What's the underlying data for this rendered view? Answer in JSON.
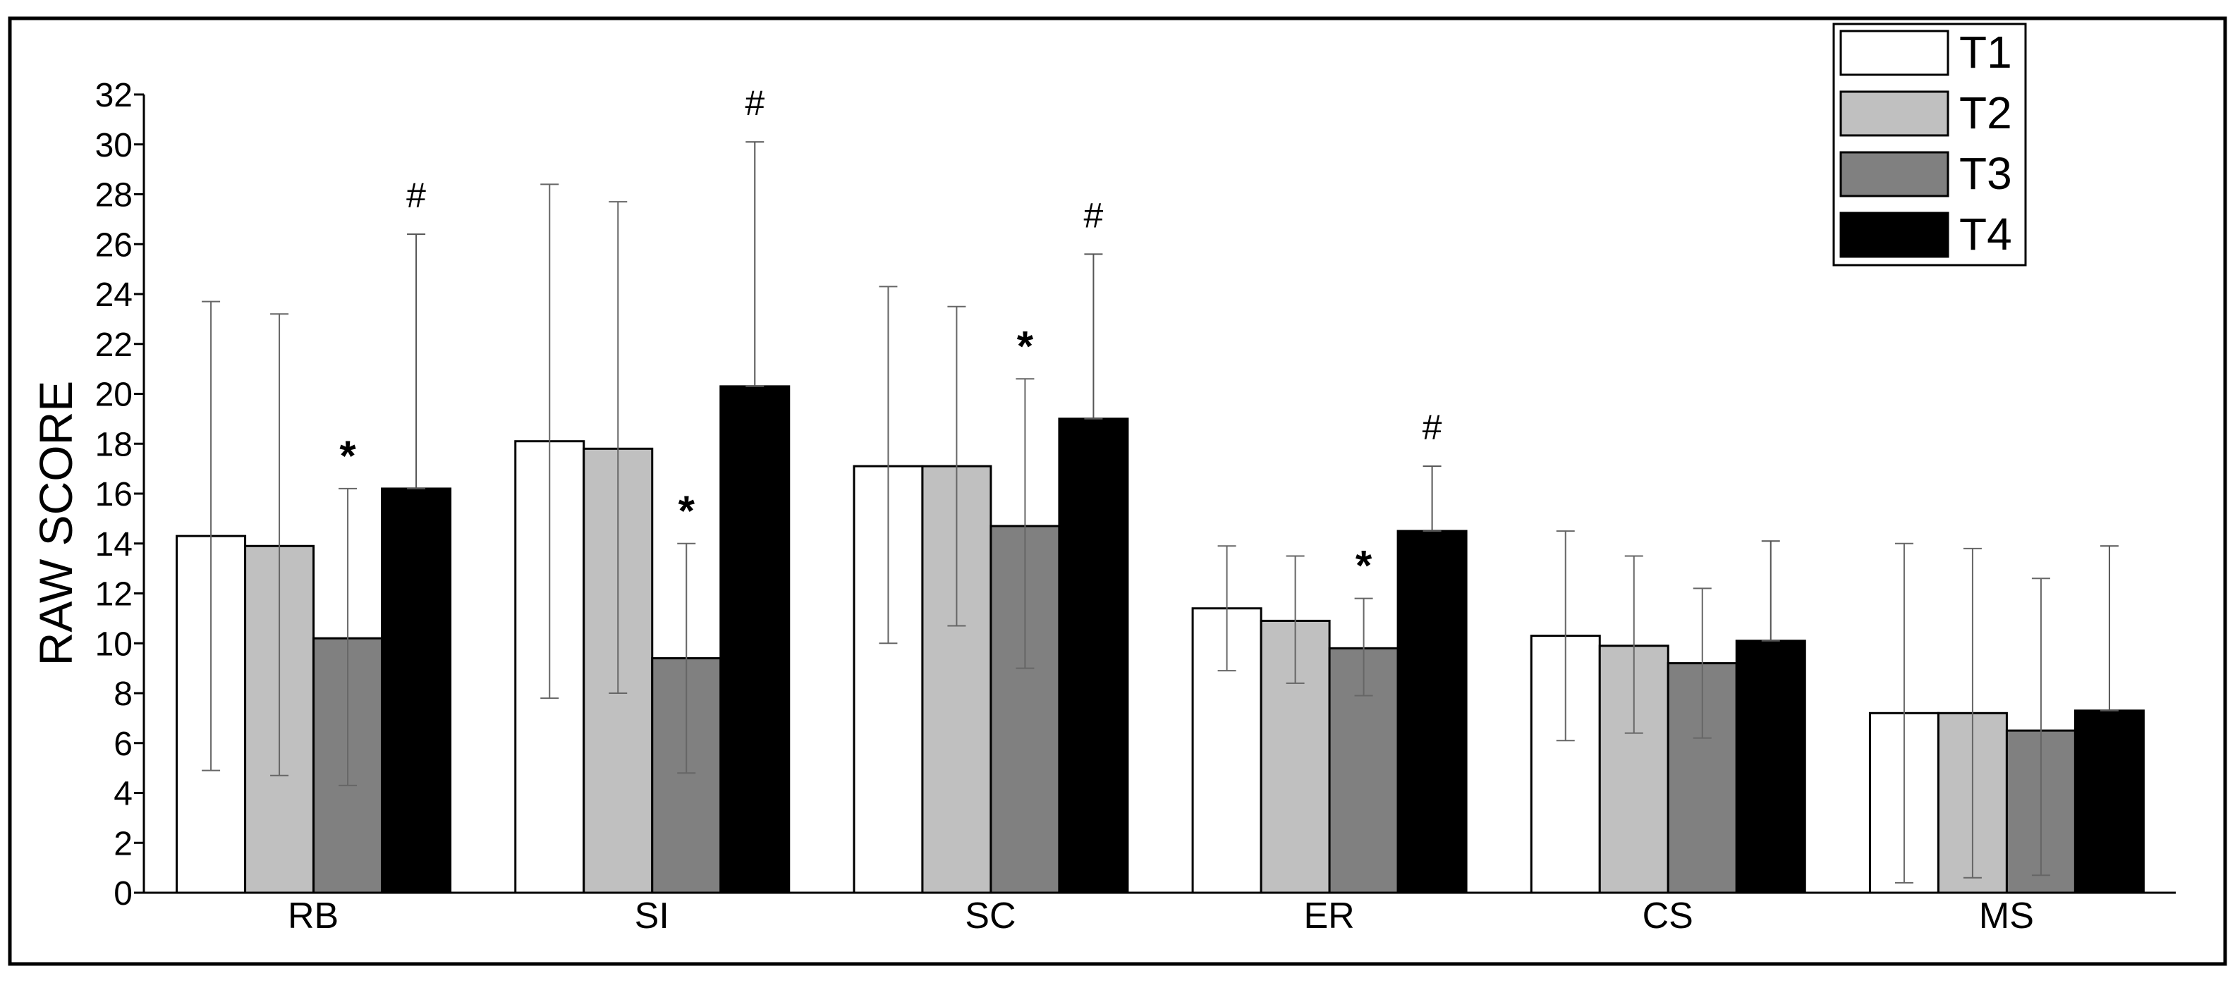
{
  "chart_data": {
    "type": "bar",
    "title": "",
    "xlabel": "",
    "ylabel": "RAW SCORE",
    "ylim": [
      0,
      32
    ],
    "yticks": [
      "0",
      "2",
      "4",
      "6",
      "8",
      "10",
      "12",
      "14",
      "16",
      "18",
      "20",
      "22",
      "24",
      "26",
      "28",
      "30",
      "32"
    ],
    "categories": [
      "RB",
      "SI",
      "SC",
      "ER",
      "CS",
      "MS"
    ],
    "series": [
      {
        "name": "T1",
        "color": "#ffffff",
        "values": [
          14.3,
          18.1,
          17.1,
          11.4,
          10.3,
          7.2
        ],
        "error_high": [
          23.7,
          28.4,
          24.3,
          13.9,
          14.5,
          14.0
        ],
        "error_low": [
          4.9,
          7.8,
          10.0,
          8.9,
          6.1,
          0.4
        ]
      },
      {
        "name": "T2",
        "color": "#c0c0c0",
        "values": [
          13.9,
          17.8,
          17.1,
          10.9,
          9.9,
          7.2
        ],
        "error_high": [
          23.2,
          27.7,
          23.5,
          13.5,
          13.5,
          13.8
        ],
        "error_low": [
          4.7,
          8.0,
          10.7,
          8.4,
          6.4,
          0.6
        ]
      },
      {
        "name": "T3",
        "color": "#808080",
        "values": [
          10.2,
          9.4,
          14.7,
          9.8,
          9.2,
          6.5
        ],
        "error_high": [
          16.2,
          14.0,
          20.6,
          11.8,
          12.2,
          12.6
        ],
        "error_low": [
          4.3,
          4.8,
          9.0,
          7.9,
          6.2,
          0.7
        ]
      },
      {
        "name": "T4",
        "color": "#000000",
        "values": [
          16.2,
          20.3,
          19.0,
          14.5,
          10.1,
          7.3
        ],
        "error_high": [
          26.4,
          30.1,
          25.6,
          17.1,
          14.1,
          13.9
        ],
        "error_low": [
          16.2,
          20.3,
          19.0,
          14.5,
          10.1,
          7.3
        ]
      }
    ],
    "annotations": [
      {
        "category": "RB",
        "series": "T3",
        "text": "*"
      },
      {
        "category": "RB",
        "series": "T4",
        "text": "#"
      },
      {
        "category": "SI",
        "series": "T3",
        "text": "*"
      },
      {
        "category": "SI",
        "series": "T4",
        "text": "#"
      },
      {
        "category": "SC",
        "series": "T3",
        "text": "*"
      },
      {
        "category": "SC",
        "series": "T4",
        "text": "#"
      },
      {
        "category": "ER",
        "series": "T3",
        "text": "*"
      },
      {
        "category": "ER",
        "series": "T4",
        "text": "#"
      }
    ],
    "legend": {
      "position": "top-right",
      "entries": [
        "T1",
        "T2",
        "T3",
        "T4"
      ]
    }
  }
}
